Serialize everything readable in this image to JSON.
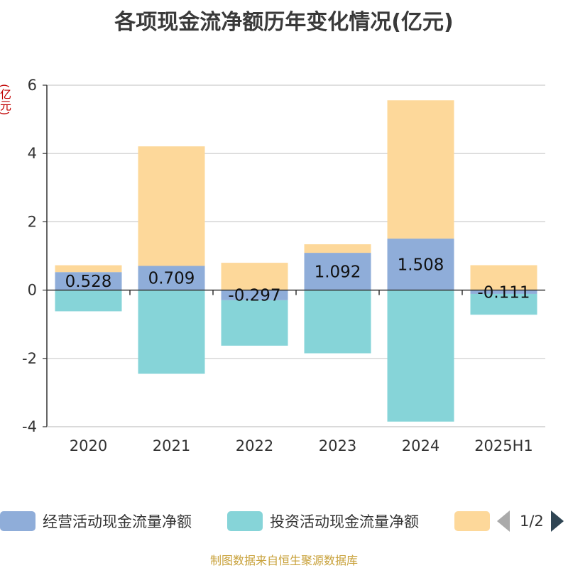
{
  "title": "各项现金流净额历年变化情况(亿元)",
  "unit": "(亿元)",
  "footer": "制图数据来自恒生聚源数据库",
  "legend": {
    "items": [
      {
        "label": "经营活动现金流量净额",
        "color": "#8fadd9"
      },
      {
        "label": "投资活动现金流量净额",
        "color": "#86d4d8"
      },
      {
        "label": "",
        "color": "#fdd89a"
      }
    ],
    "page": "1/2"
  },
  "chart_data": {
    "type": "bar",
    "stacked": true,
    "categories": [
      "2020",
      "2021",
      "2022",
      "2023",
      "2024",
      "2025H1"
    ],
    "series": [
      {
        "name": "经营活动现金流量净额",
        "color": "#8fadd9",
        "values": [
          0.528,
          0.709,
          -0.297,
          1.092,
          1.508,
          -0.111
        ],
        "data_labels": [
          "0.528",
          "0.709",
          "-0.297",
          "1.092",
          "1.508",
          "-0.111"
        ]
      },
      {
        "name": "投资活动现金流量净额",
        "color": "#86d4d8",
        "values": [
          -0.62,
          -2.45,
          -1.33,
          -1.85,
          -3.85,
          -0.61
        ]
      },
      {
        "name": "",
        "color": "#fdd89a",
        "values": [
          0.2,
          3.5,
          0.8,
          0.25,
          4.05,
          0.73
        ]
      }
    ],
    "y_ticks": [
      6,
      4,
      2,
      0,
      -2,
      -4
    ],
    "ylim": [
      -4,
      6
    ],
    "grid": true,
    "legend_position": "bottom"
  }
}
